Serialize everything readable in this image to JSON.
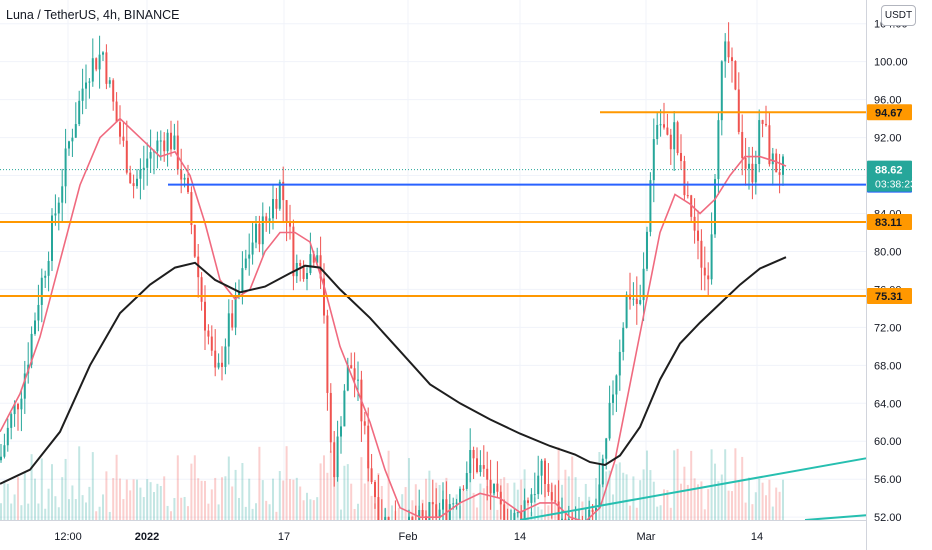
{
  "header": {
    "symbol_title": "Luna / TetherUS, 4h, BINANCE",
    "currency_button": "USDT"
  },
  "colors": {
    "candle_up": "#26a69a",
    "candle_down": "#ef5350",
    "fast_ma": "#f06a7f",
    "slow_ma": "#1e1e1e",
    "level_line": "#ff9800",
    "blue_line": "#2962ff",
    "trend_line": "#26bfb0",
    "last_price_bg": "#26a69a"
  },
  "chart_data": {
    "type": "candlestick",
    "symbol": "Luna / TetherUS",
    "interval": "4h",
    "exchange": "BINANCE",
    "y_axis": {
      "ticks": [
        52,
        56,
        60,
        64,
        68,
        72,
        76,
        80,
        84,
        88,
        92,
        96,
        100,
        104
      ],
      "tick_labels": [
        "52.00",
        "56.00",
        "60.00",
        "64.00",
        "68.00",
        "72.00",
        "76.00",
        "80.00",
        "84.00",
        "88.00",
        "92.00",
        "96.00",
        "100.00",
        "104.00"
      ],
      "range": [
        51.7,
        106.5
      ]
    },
    "x_axis": {
      "tick_labels": [
        "12:00",
        "2022",
        "17",
        "Feb",
        "14",
        "Mar",
        "14"
      ],
      "bold_labels": [
        "2022"
      ]
    },
    "horizontal_levels": [
      {
        "value": 94.67,
        "label": "94.67",
        "color": "orange",
        "full_width": false
      },
      {
        "value": 83.11,
        "label": "83.11",
        "color": "orange",
        "full_width": true
      },
      {
        "value": 75.31,
        "label": "75.31",
        "color": "orange",
        "full_width": true
      },
      {
        "value": 87.04,
        "label": "87.04",
        "color": "blue",
        "full_width": false
      }
    ],
    "last_price": {
      "value": 88.62,
      "label": "88.62",
      "countdown": "03:38:23"
    },
    "trend_lines": [
      {
        "from": [
          520,
          51.7
        ],
        "to": [
          866,
          58.2
        ]
      },
      {
        "from": [
          805,
          51.7
        ],
        "to": [
          866,
          52.2
        ]
      }
    ],
    "price_path": [
      [
        0,
        58
      ],
      [
        10,
        62
      ],
      [
        20,
        65
      ],
      [
        28,
        69
      ],
      [
        38,
        75
      ],
      [
        46,
        79
      ],
      [
        55,
        84
      ],
      [
        63,
        88
      ],
      [
        70,
        92
      ],
      [
        78,
        95
      ],
      [
        86,
        99
      ],
      [
        94,
        100
      ],
      [
        103,
        101
      ],
      [
        110,
        97
      ],
      [
        118,
        93
      ],
      [
        126,
        90
      ],
      [
        133,
        87
      ],
      [
        140,
        88
      ],
      [
        148,
        90
      ],
      [
        156,
        91
      ],
      [
        163,
        92
      ],
      [
        170,
        92
      ],
      [
        177,
        90
      ],
      [
        184,
        87
      ],
      [
        190,
        84
      ],
      [
        196,
        79
      ],
      [
        203,
        74
      ],
      [
        210,
        70
      ],
      [
        216,
        66
      ],
      [
        222,
        69
      ],
      [
        228,
        72
      ],
      [
        234,
        73
      ],
      [
        240,
        76
      ],
      [
        246,
        79
      ],
      [
        252,
        81
      ],
      [
        258,
        82
      ],
      [
        265,
        83
      ],
      [
        272,
        85
      ],
      [
        280,
        87
      ],
      [
        287,
        84
      ],
      [
        293,
        79
      ],
      [
        299,
        78
      ],
      [
        306,
        79
      ],
      [
        313,
        80
      ],
      [
        318,
        81
      ],
      [
        322,
        76
      ],
      [
        326,
        68
      ],
      [
        330,
        60
      ],
      [
        335,
        57
      ],
      [
        340,
        62
      ],
      [
        346,
        67
      ],
      [
        352,
        68
      ],
      [
        358,
        65
      ],
      [
        364,
        61
      ],
      [
        370,
        57
      ],
      [
        376,
        54
      ],
      [
        382,
        52
      ],
      [
        390,
        51
      ],
      [
        398,
        50.5
      ],
      [
        406,
        50.5
      ],
      [
        414,
        50.8
      ],
      [
        422,
        51.5
      ],
      [
        430,
        52.2
      ],
      [
        438,
        52.5
      ],
      [
        446,
        53
      ],
      [
        454,
        54
      ],
      [
        462,
        56
      ],
      [
        470,
        58
      ],
      [
        478,
        57.5
      ],
      [
        486,
        56
      ],
      [
        494,
        54
      ],
      [
        500,
        52.5
      ],
      [
        506,
        52
      ],
      [
        512,
        51.5
      ],
      [
        518,
        52
      ],
      [
        524,
        53.5
      ],
      [
        530,
        54.5
      ],
      [
        536,
        55.5
      ],
      [
        542,
        56.5
      ],
      [
        548,
        55
      ],
      [
        554,
        53
      ],
      [
        560,
        51.5
      ],
      [
        566,
        50.8
      ],
      [
        572,
        50.5
      ],
      [
        578,
        50.5
      ],
      [
        584,
        50.8
      ],
      [
        590,
        51.5
      ],
      [
        596,
        53
      ],
      [
        602,
        56
      ],
      [
        607,
        60
      ],
      [
        612,
        65
      ],
      [
        617,
        68
      ],
      [
        622,
        72
      ],
      [
        628,
        76
      ],
      [
        634,
        75
      ],
      [
        640,
        74
      ],
      [
        646,
        80
      ],
      [
        650,
        88
      ],
      [
        654,
        92
      ],
      [
        658,
        94
      ],
      [
        663,
        93
      ],
      [
        668,
        91
      ],
      [
        674,
        93
      ],
      [
        680,
        89
      ],
      [
        686,
        85
      ],
      [
        692,
        84
      ],
      [
        698,
        80
      ],
      [
        702,
        79
      ],
      [
        706,
        77
      ],
      [
        710,
        80
      ],
      [
        714,
        87
      ],
      [
        718,
        95
      ],
      [
        722,
        99
      ],
      [
        726,
        101
      ],
      [
        730,
        100
      ],
      [
        734,
        97
      ],
      [
        738,
        94
      ],
      [
        742,
        91
      ],
      [
        746,
        89
      ],
      [
        750,
        88
      ],
      [
        754,
        89
      ],
      [
        758,
        92
      ],
      [
        762,
        94
      ],
      [
        766,
        92
      ],
      [
        770,
        90
      ],
      [
        774,
        89
      ],
      [
        778,
        89
      ],
      [
        782,
        88.5
      ],
      [
        786,
        88.62
      ]
    ],
    "fast_ma": [
      [
        0,
        61
      ],
      [
        20,
        65
      ],
      [
        40,
        71
      ],
      [
        60,
        79
      ],
      [
        80,
        87
      ],
      [
        100,
        92
      ],
      [
        120,
        94
      ],
      [
        140,
        92
      ],
      [
        160,
        90
      ],
      [
        175,
        90.5
      ],
      [
        190,
        88
      ],
      [
        205,
        83
      ],
      [
        220,
        77
      ],
      [
        235,
        75
      ],
      [
        250,
        76
      ],
      [
        265,
        80
      ],
      [
        280,
        82
      ],
      [
        295,
        82
      ],
      [
        310,
        81
      ],
      [
        325,
        76
      ],
      [
        340,
        70
      ],
      [
        355,
        66
      ],
      [
        370,
        62
      ],
      [
        385,
        57
      ],
      [
        400,
        53
      ],
      [
        420,
        52
      ],
      [
        440,
        52
      ],
      [
        460,
        53.5
      ],
      [
        480,
        54.5
      ],
      [
        500,
        54
      ],
      [
        520,
        52.5
      ],
      [
        540,
        53.5
      ],
      [
        555,
        53.5
      ],
      [
        570,
        52
      ],
      [
        585,
        51.5
      ],
      [
        600,
        53
      ],
      [
        615,
        58
      ],
      [
        630,
        66
      ],
      [
        645,
        74
      ],
      [
        660,
        82
      ],
      [
        675,
        86
      ],
      [
        690,
        85
      ],
      [
        700,
        84
      ],
      [
        715,
        85.5
      ],
      [
        730,
        88
      ],
      [
        745,
        90
      ],
      [
        760,
        90
      ],
      [
        775,
        89.5
      ],
      [
        786,
        89
      ]
    ],
    "slow_ma": [
      [
        0,
        55.5
      ],
      [
        30,
        57
      ],
      [
        60,
        61
      ],
      [
        90,
        68
      ],
      [
        120,
        73.5
      ],
      [
        150,
        76.5
      ],
      [
        175,
        78.3
      ],
      [
        195,
        78.8
      ],
      [
        215,
        77
      ],
      [
        240,
        75.7
      ],
      [
        265,
        76.3
      ],
      [
        290,
        77.7
      ],
      [
        305,
        78.5
      ],
      [
        320,
        78.3
      ],
      [
        340,
        76
      ],
      [
        370,
        73
      ],
      [
        400,
        69.5
      ],
      [
        430,
        66
      ],
      [
        460,
        64
      ],
      [
        490,
        62.3
      ],
      [
        520,
        60.8
      ],
      [
        550,
        59.5
      ],
      [
        575,
        58.6
      ],
      [
        590,
        57.8
      ],
      [
        605,
        57.5
      ],
      [
        620,
        58.5
      ],
      [
        640,
        61.5
      ],
      [
        660,
        66.5
      ],
      [
        680,
        70.3
      ],
      [
        700,
        72.5
      ],
      [
        720,
        74.5
      ],
      [
        740,
        76.5
      ],
      [
        760,
        78.2
      ],
      [
        786,
        79.4
      ]
    ]
  }
}
